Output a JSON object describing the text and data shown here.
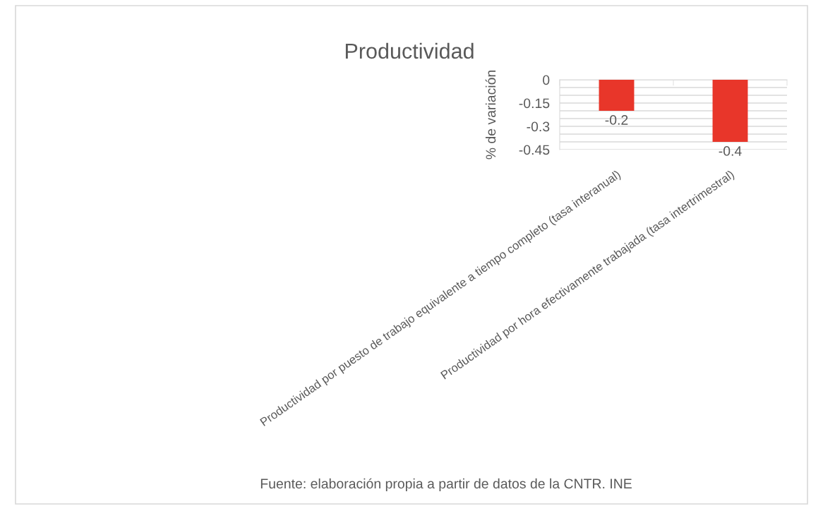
{
  "chart_data": {
    "type": "bar",
    "title": "Productividad",
    "ylabel": "% de variación",
    "categories": [
      "Productividad por puesto de trabajo equivalente a tiempo completo (tasa interanual)",
      "Productividad por hora efectivamente trabajada (tasa intertrimestral)"
    ],
    "values": [
      -0.2,
      -0.4
    ],
    "color": "#e8362a",
    "data_labels": true,
    "ylim": [
      -0.45,
      0
    ],
    "yticks": [
      0,
      {
        "value": -0.05,
        "label": null
      },
      {
        "value": -0.1,
        "label": null
      },
      -0.15,
      {
        "value": -0.2,
        "label": null
      },
      {
        "value": -0.25,
        "label": null
      },
      -0.3,
      {
        "value": -0.35,
        "label": null
      },
      {
        "value": -0.4,
        "label": null
      },
      -0.45
    ],
    "grid": "y",
    "annotations": [
      "Fuente: elaboración propia a partir de datos de la CNTR. INE"
    ]
  }
}
